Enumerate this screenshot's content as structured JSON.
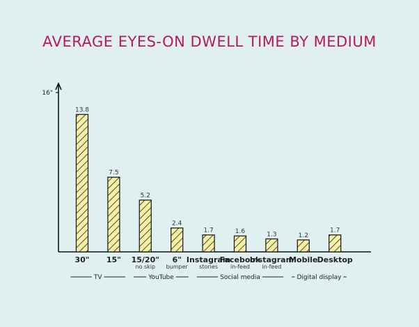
{
  "chart_data": {
    "type": "bar",
    "title": "AVERAGE EYES-ON DWELL TIME BY MEDIUM",
    "y_axis": {
      "min": 0,
      "max": 16,
      "ticks": [
        {
          "value": 16,
          "label": "16\""
        }
      ]
    },
    "categories": [
      {
        "label": "30\"",
        "sublabel": ""
      },
      {
        "label": "15\"",
        "sublabel": ""
      },
      {
        "label": "15/20\"",
        "sublabel": "no skip"
      },
      {
        "label": "6\"",
        "sublabel": "bumper"
      },
      {
        "label": "Instagram",
        "sublabel": "stories"
      },
      {
        "label": "Facebook",
        "sublabel": "in-feed"
      },
      {
        "label": "Instagram",
        "sublabel": "in-feed"
      },
      {
        "label": "Mobile",
        "sublabel": ""
      },
      {
        "label": "Desktop",
        "sublabel": ""
      }
    ],
    "values": [
      13.8,
      7.5,
      5.2,
      2.4,
      1.7,
      1.6,
      1.3,
      1.2,
      1.7
    ],
    "value_labels": [
      "13.8",
      "7.5",
      "5.2",
      "2.4",
      "1.7",
      "1.6",
      "1.3",
      "1.2",
      "1.7"
    ],
    "groups": [
      {
        "label": "TV",
        "from": 0,
        "to": 1
      },
      {
        "label": "YouTube",
        "from": 2,
        "to": 3
      },
      {
        "label": "Social media",
        "from": 4,
        "to": 6
      },
      {
        "label": "Digital display",
        "from": 7,
        "to": 8
      }
    ],
    "grid": false,
    "bar_fill": "#f6f0a4",
    "bar_stroke": "#222222",
    "title_color": "#b8195c"
  }
}
